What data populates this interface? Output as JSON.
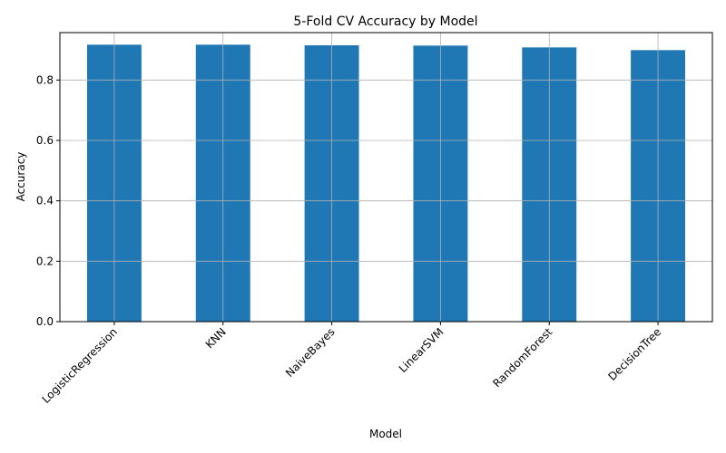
{
  "chart_data": {
    "type": "bar",
    "title": "5-Fold CV Accuracy by Model",
    "xlabel": "Model",
    "ylabel": "Accuracy",
    "categories": [
      "LogisticRegression",
      "KNN",
      "NaiveBayes",
      "LinearSVM",
      "RandomForest",
      "DecisionTree"
    ],
    "values": [
      0.917,
      0.917,
      0.915,
      0.914,
      0.908,
      0.899
    ],
    "ylim": [
      0,
      0.957
    ],
    "yticks": [
      0.0,
      0.2,
      0.4,
      0.6,
      0.8
    ],
    "ytick_labels": [
      "0.0",
      "0.2",
      "0.4",
      "0.6",
      "0.8"
    ],
    "grid": true,
    "legend": "none",
    "bar_color": "#1f77b4",
    "grid_color": "#b0b0b0"
  }
}
